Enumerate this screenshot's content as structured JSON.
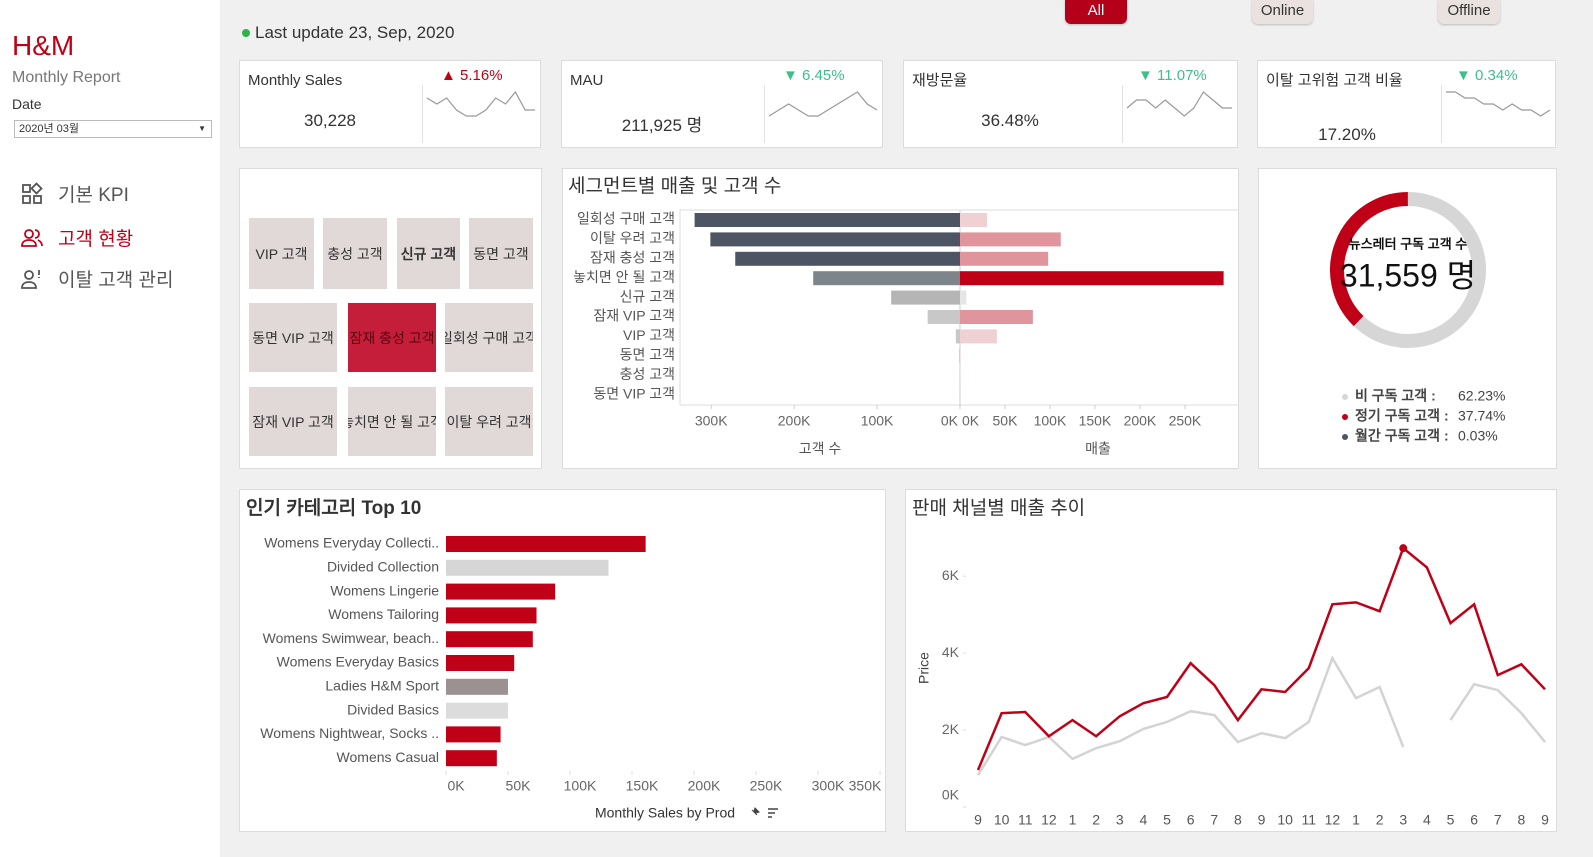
{
  "sidebar": {
    "brand": "H&M",
    "subtitle": "Monthly Report",
    "date_label": "Date",
    "date_value": "2020년 03월",
    "nav": [
      "기본 KPI",
      "고객 현황",
      "이탈 고객 관리"
    ],
    "active_nav": 1
  },
  "header": {
    "last_update": "Last update 23, Sep, 2020",
    "filters": [
      "All",
      "Online",
      "Offline"
    ],
    "active_filter": 0
  },
  "kpis": [
    {
      "title": "Monthly Sales",
      "value": "30,228",
      "change": "▲ 5.16%",
      "color": "#c00017",
      "spark": [
        6,
        5,
        6,
        4,
        3,
        3,
        4,
        6,
        5,
        7,
        4,
        4
      ]
    },
    {
      "title": "MAU",
      "value": "211,925 명",
      "change": "▼ 6.45%",
      "color": "#3dbf8a",
      "spark": [
        4,
        5,
        6,
        5,
        4,
        4,
        5,
        6,
        7,
        8,
        6,
        5
      ]
    },
    {
      "title": "재방문율",
      "value": "36.48%",
      "change": "▼ 11.07%",
      "color": "#3dbf8a",
      "spark": [
        5,
        6,
        6,
        5,
        6,
        5,
        4,
        5,
        7,
        6,
        5,
        5
      ]
    },
    {
      "title": "이탈 고위험 고객 비율",
      "value": "17.20%",
      "change": "▼ 0.34%",
      "color": "#3dbf8a",
      "spark": [
        8,
        8,
        7,
        7,
        6,
        6,
        5,
        6,
        5,
        5,
        4,
        5
      ]
    }
  ],
  "segments": {
    "tiles": [
      {
        "label": "VIP 고객"
      },
      {
        "label": "충성 고객"
      },
      {
        "label": "신규 고객",
        "bold": true
      },
      {
        "label": "동면 고객"
      },
      {
        "label": "동면 VIP 고객"
      },
      {
        "label": "잠재 충성 고객",
        "selected": true
      },
      {
        "label": "일회성 구매 고객"
      },
      {
        "label": "잠재 VIP 고객"
      },
      {
        "label": "놓치면 안 될 고객"
      },
      {
        "label": "이탈 우려 고객"
      }
    ]
  },
  "chart_data": [
    {
      "type": "butterfly",
      "title": "세그먼트별 매출 및 고객 수",
      "categories": [
        "일회성 구매 고객",
        "이탈 우려 고객",
        "잠재 충성 고객",
        "놓치면 안 될 고객",
        "신규 고객",
        "잠재 VIP 고객",
        "VIP 고객",
        "동면 고객",
        "충성 고객",
        "동면 VIP 고객"
      ],
      "series": [
        {
          "name": "고객 수",
          "values": [
            320000,
            301000,
            271000,
            177000,
            83000,
            39000,
            5000,
            1000,
            600,
            300
          ],
          "colors": [
            "#4d5565",
            "#4d5565",
            "#4d5565",
            "#7e858a",
            "#b5b5b5",
            "#c8c8c8",
            "#c8c8c8",
            "#c8c8c8",
            "#c8c8c8",
            "#c8c8c8"
          ]
        },
        {
          "name": "매출",
          "axis": "x2",
          "values": [
            30000,
            112000,
            98000,
            293000,
            7000,
            81000,
            41000,
            500,
            400,
            200
          ],
          "colors": [
            "#efd0d3",
            "#e0959c",
            "#e0959c",
            "#c00017",
            "#e5e5e5",
            "#e0959c",
            "#efd0d3",
            "#efd0d3",
            "#efd0d3",
            "#efd0d3"
          ]
        }
      ],
      "xlim": [
        0,
        334000
      ],
      "xticks": [
        {
          "value": 0,
          "label": "0K"
        },
        {
          "value": 100000,
          "label": "100K"
        },
        {
          "value": 200000,
          "label": "200K"
        },
        {
          "value": 300000,
          "label": "300K"
        }
      ],
      "x2lim": [
        0,
        309000
      ],
      "x2ticks": [
        {
          "value": 0,
          "label": "0K"
        },
        {
          "value": 50000,
          "label": "50K"
        },
        {
          "value": 100000,
          "label": "100K"
        },
        {
          "value": 150000,
          "label": "150K"
        },
        {
          "value": 200000,
          "label": "200K"
        },
        {
          "value": 250000,
          "label": "250K"
        }
      ]
    },
    {
      "type": "donut",
      "title": "뉴스레터 구독 고객 수",
      "center_label": "31,559 명",
      "categories": [
        "비 구독 고객 :",
        "정기 구독 고객 :",
        "월간 구독 고객 :"
      ],
      "values": [
        62.23,
        37.74,
        0.03
      ],
      "value_labels": [
        "62.23%",
        "37.74%",
        "0.03%"
      ],
      "colors": [
        "#d6d6d6",
        "#c00017",
        "#4d5565"
      ]
    },
    {
      "type": "bar",
      "title": "인기 카테고리 Top 10",
      "xlabel": "Monthly Sales by Prod",
      "categories": [
        "Womens Everyday Collecti..",
        "Divided Collection",
        "Womens Lingerie",
        "Womens Tailoring",
        "Womens Swimwear, beach..",
        "Womens Everyday Basics",
        "Ladies H&M Sport",
        "Divided Basics",
        "Womens Nightwear, Socks ..",
        "Womens Casual"
      ],
      "values": [
        161000,
        131000,
        88000,
        73000,
        70000,
        55000,
        50000,
        50000,
        44000,
        41000
      ],
      "colors": [
        "#c00017",
        "#d6d6d6",
        "#c00017",
        "#c00017",
        "#c00017",
        "#c00017",
        "#9b9190",
        "#dcdcdc",
        "#c00017",
        "#c00017"
      ],
      "xlim": [
        0,
        350000
      ],
      "xticks": [
        {
          "value": 0,
          "label": "0K"
        },
        {
          "value": 50000,
          "label": "50K"
        },
        {
          "value": 100000,
          "label": "100K"
        },
        {
          "value": 150000,
          "label": "150K"
        },
        {
          "value": 200000,
          "label": "200K"
        },
        {
          "value": 250000,
          "label": "250K"
        },
        {
          "value": 300000,
          "label": "300K"
        },
        {
          "value": 350000,
          "label": "350K"
        }
      ]
    },
    {
      "type": "line",
      "title": "판매 채널별 매출 추이",
      "ylabel": "Price",
      "categories": [
        "9",
        "10",
        "11",
        "12",
        "1",
        "2",
        "3",
        "4",
        "5",
        "6",
        "7",
        "8",
        "9",
        "10",
        "11",
        "12",
        "1",
        "2",
        "3",
        "4",
        "5",
        "6",
        "7",
        "8",
        "9"
      ],
      "series": [
        {
          "color": "#c00017",
          "highlight_index": 18,
          "values": [
            960,
            2440,
            2470,
            1840,
            2260,
            1840,
            2360,
            2700,
            2860,
            3740,
            3170,
            2260,
            3060,
            2990,
            3610,
            5270,
            5320,
            5090,
            6730,
            6230,
            4780,
            5270,
            3430,
            3710,
            3060
          ]
        },
        {
          "color": "#d3d3d3",
          "values": [
            830,
            1820,
            1610,
            1820,
            1250,
            1530,
            1710,
            2030,
            2210,
            2490,
            2390,
            1690,
            1920,
            1790,
            2210,
            3870,
            2830,
            3120,
            1560,
            null,
            2260,
            3190,
            3040,
            2440,
            1690
          ]
        }
      ],
      "ylim": [
        0,
        6500
      ],
      "yticks": [
        {
          "value": 0,
          "label": "0K"
        },
        {
          "value": 2000,
          "label": "2K"
        },
        {
          "value": 4000,
          "label": "4K"
        },
        {
          "value": 6000,
          "label": "6K"
        }
      ]
    }
  ]
}
